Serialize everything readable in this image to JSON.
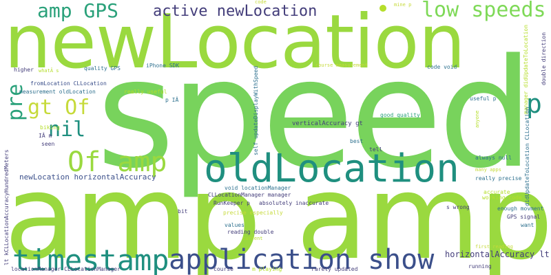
{
  "colors": {
    "lime": "#7ed957",
    "green": "#5dc863",
    "yellow_green": "#9ad93f",
    "teal": "#2aa17a",
    "dark_teal": "#1f8f7f",
    "navy": "#3b4f8a",
    "purple": "#433d7a",
    "yellow": "#c6da3a",
    "background": "#ffffff"
  },
  "words": {
    "speed": "speed",
    "amp_large": "amp amp",
    "newlocation_large": "newLocation",
    "oldlocation": "oldLocation",
    "timestamp": "timestamp",
    "application_show": "application show",
    "of_amp": "Of amp",
    "amp_gps": "amp GPS",
    "active_newlocation": "active newLocation",
    "low_speeds": "low speeds",
    "gt_of": "gt Of",
    "nil": "nil",
    "pre": "pre",
    "p_right": "p",
    "newlocation_horizontal": "newLocation horizontalAccuracy",
    "horizontal_lt": "horizontalAccuracy lt",
    "verticalaccuracy_gt": "verticalAccuracy gt",
    "self_update": "self updateDisplayWithSpeed",
    "manager_did": "manager didUpdateToLocation",
    "did_cl": "didUpdateToLocation CLLocation",
    "lt_kcl": "lt kCLLocationAccuracyHundredMeters",
    "double_direction": "double direction",
    "code": "code",
    "mine_p": "mine p",
    "higher": "higher",
    "whata_s": "whatÂ s",
    "quality_gps": "quality GPS",
    "iphone_sdk": "iPhone SDK",
    "course_measurement": "course measurement",
    "code_void": "code void",
    "fromlocation": "fromLocation CLLocation",
    "measurement_oldlocation": "measurement oldLocation",
    "really_useful": "really useful",
    "p_ia": "p IÂ",
    "useful_p": "useful p",
    "good_quality": "good quality",
    "anyone": "anyone",
    "biking": "biking",
    "ia_m": "IÂ m",
    "seen": "seen",
    "best": "best",
    "tell": "tell",
    "always_null": "always null",
    "many_apps": "many apps",
    "really_precise": "really precise",
    "void_locationmanager": "void locationManager",
    "cllocationmanager_manager": "CLLocationManager manager",
    "runkeeper_p": "RunKeeper p",
    "absolutely_inaccurate": "absolutely inaccurate",
    "accurate": "accurate",
    "working_code": "working code",
    "s_wrong": "s wrong",
    "bit": "bit",
    "precise_especially": "precise especially",
    "enough_movment": "enough movment",
    "gps_signal": "GPS signal",
    "want": "want",
    "values": "values",
    "reading_double": "reading double",
    "current": "current",
    "first_reading": "first reading",
    "running": "running",
    "locationmanager_cl": "locationManager CLLocationManager",
    "course": "course",
    "m_playing": "m playing",
    "rarely_updated": "rarely updated"
  }
}
